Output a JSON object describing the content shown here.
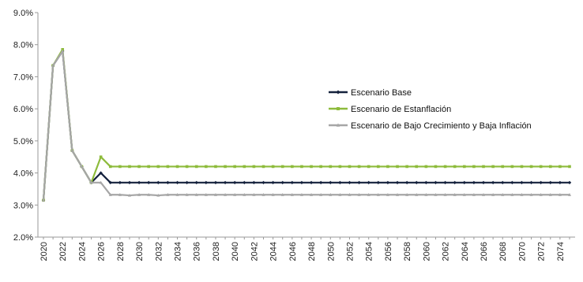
{
  "chart_data": {
    "type": "line",
    "title": "",
    "xlabel": "",
    "ylabel": "",
    "x_start": 2020,
    "x_end": 2075,
    "x_tick_labels": [
      "2020",
      "2022",
      "2024",
      "2026",
      "2028",
      "2030",
      "2032",
      "2034",
      "2036",
      "2038",
      "2040",
      "2042",
      "2044",
      "2046",
      "2048",
      "2050",
      "2052",
      "2054",
      "2056",
      "2058",
      "2060",
      "2062",
      "2064",
      "2066",
      "2068",
      "2070",
      "2072",
      "2074"
    ],
    "y_tick_labels": [
      "2.0%",
      "3.0%",
      "4.0%",
      "5.0%",
      "6.0%",
      "7.0%",
      "8.0%",
      "9.0%"
    ],
    "ylim": [
      2.0,
      9.0
    ],
    "y_unit": "%",
    "grid": false,
    "legend_position": "center-right",
    "series": [
      {
        "name": "Escenario Base",
        "color": "#14213d",
        "marker": "diamond",
        "values": [
          3.15,
          7.35,
          7.8,
          4.7,
          4.2,
          3.7,
          4.0,
          3.7,
          3.7,
          3.7,
          3.7,
          3.7,
          3.7,
          3.7,
          3.7,
          3.7,
          3.7,
          3.7,
          3.7,
          3.7,
          3.7,
          3.7,
          3.7,
          3.7,
          3.7,
          3.7,
          3.7,
          3.7,
          3.7,
          3.7,
          3.7,
          3.7,
          3.7,
          3.7,
          3.7,
          3.7,
          3.7,
          3.7,
          3.7,
          3.7,
          3.7,
          3.7,
          3.7,
          3.7,
          3.7,
          3.7,
          3.7,
          3.7,
          3.7,
          3.7,
          3.7,
          3.7,
          3.7,
          3.7,
          3.7,
          3.7
        ]
      },
      {
        "name": "Escenario de Estanflación",
        "color": "#8dbb3b",
        "marker": "square",
        "values": [
          3.15,
          7.35,
          7.85,
          4.7,
          4.2,
          3.7,
          4.5,
          4.2,
          4.2,
          4.2,
          4.2,
          4.2,
          4.2,
          4.2,
          4.2,
          4.2,
          4.2,
          4.2,
          4.2,
          4.2,
          4.2,
          4.2,
          4.2,
          4.2,
          4.2,
          4.2,
          4.2,
          4.2,
          4.2,
          4.2,
          4.2,
          4.2,
          4.2,
          4.2,
          4.2,
          4.2,
          4.2,
          4.2,
          4.2,
          4.2,
          4.2,
          4.2,
          4.2,
          4.2,
          4.2,
          4.2,
          4.2,
          4.2,
          4.2,
          4.2,
          4.2,
          4.2,
          4.2,
          4.2,
          4.2,
          4.2
        ]
      },
      {
        "name": "Escenario de Bajo Crecimiento y Baja Inflación",
        "color": "#a6a6a6",
        "marker": "triangle",
        "values": [
          3.15,
          7.35,
          7.8,
          4.7,
          4.2,
          3.7,
          3.7,
          3.32,
          3.32,
          3.3,
          3.32,
          3.32,
          3.3,
          3.32,
          3.32,
          3.32,
          3.32,
          3.32,
          3.32,
          3.32,
          3.32,
          3.32,
          3.32,
          3.32,
          3.32,
          3.32,
          3.32,
          3.32,
          3.32,
          3.32,
          3.32,
          3.32,
          3.32,
          3.32,
          3.32,
          3.32,
          3.32,
          3.32,
          3.32,
          3.32,
          3.32,
          3.32,
          3.32,
          3.32,
          3.32,
          3.32,
          3.32,
          3.32,
          3.32,
          3.32,
          3.32,
          3.32,
          3.32,
          3.32,
          3.32,
          3.32
        ]
      }
    ]
  }
}
